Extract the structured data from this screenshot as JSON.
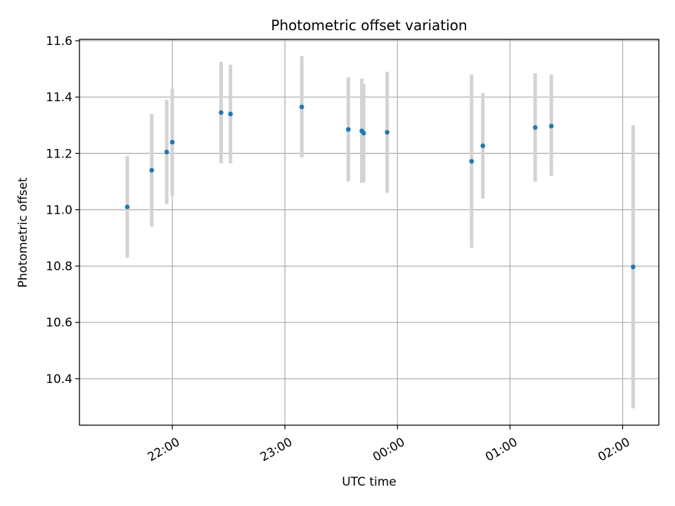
{
  "chart_data": {
    "type": "scatter",
    "title": "Photometric offset variation",
    "xlabel": "UTC time",
    "ylabel": "Photometric offset",
    "grid": true,
    "x_tick_labels": [
      "22:00",
      "23:00",
      "00:00",
      "01:00",
      "02:00"
    ],
    "x_tick_minutes": [
      1320,
      1380,
      1440,
      1500,
      1560
    ],
    "xlim_minutes": [
      1270.5,
      1579.3
    ],
    "y_ticks": [
      10.4,
      10.6,
      10.8,
      11.0,
      11.2,
      11.4,
      11.6
    ],
    "y_tick_labels": [
      "10.4",
      "10.6",
      "10.8",
      "11.0",
      "11.2",
      "11.4",
      "11.6"
    ],
    "ylim": [
      10.235,
      11.605
    ],
    "colors": {
      "point": "#1f77b4",
      "errorbar": "#d3d3d3",
      "grid": "#b0b0b0"
    },
    "series": [
      {
        "points": [
          {
            "time": "21:36",
            "t": 1296.0,
            "y": 11.01,
            "ylow": 10.83,
            "yhigh": 11.19
          },
          {
            "time": "21:49",
            "t": 1309.0,
            "y": 11.14,
            "ylow": 10.94,
            "yhigh": 11.34
          },
          {
            "time": "21:57",
            "t": 1317.0,
            "y": 11.205,
            "ylow": 11.02,
            "yhigh": 11.39
          },
          {
            "time": "22:00",
            "t": 1320.0,
            "y": 11.24,
            "ylow": 11.05,
            "yhigh": 11.43
          },
          {
            "time": "22:26",
            "t": 1346.0,
            "y": 11.345,
            "ylow": 11.165,
            "yhigh": 11.525
          },
          {
            "time": "22:31",
            "t": 1351.0,
            "y": 11.34,
            "ylow": 11.165,
            "yhigh": 11.515
          },
          {
            "time": "23:09",
            "t": 1389.0,
            "y": 11.365,
            "ylow": 11.185,
            "yhigh": 11.545
          },
          {
            "time": "23:34",
            "t": 1413.8,
            "y": 11.285,
            "ylow": 11.1,
            "yhigh": 11.47
          },
          {
            "time": "23:41",
            "t": 1421.0,
            "y": 11.28,
            "ylow": 11.095,
            "yhigh": 11.465
          },
          {
            "time": "23:42",
            "t": 1422.0,
            "y": 11.272,
            "ylow": 11.097,
            "yhigh": 11.447
          },
          {
            "time": "23:54",
            "t": 1434.5,
            "y": 11.275,
            "ylow": 11.06,
            "yhigh": 11.49
          },
          {
            "time": "00:40",
            "t": 1479.5,
            "y": 11.172,
            "ylow": 10.865,
            "yhigh": 11.48
          },
          {
            "time": "00:46",
            "t": 1485.5,
            "y": 11.227,
            "ylow": 11.04,
            "yhigh": 11.415
          },
          {
            "time": "01:13",
            "t": 1513.4,
            "y": 11.292,
            "ylow": 11.1,
            "yhigh": 11.485
          },
          {
            "time": "01:22",
            "t": 1522.0,
            "y": 11.297,
            "ylow": 11.12,
            "yhigh": 11.48
          },
          {
            "time": "02:06",
            "t": 1565.6,
            "y": 10.797,
            "ylow": 10.295,
            "yhigh": 11.3
          }
        ]
      }
    ]
  }
}
